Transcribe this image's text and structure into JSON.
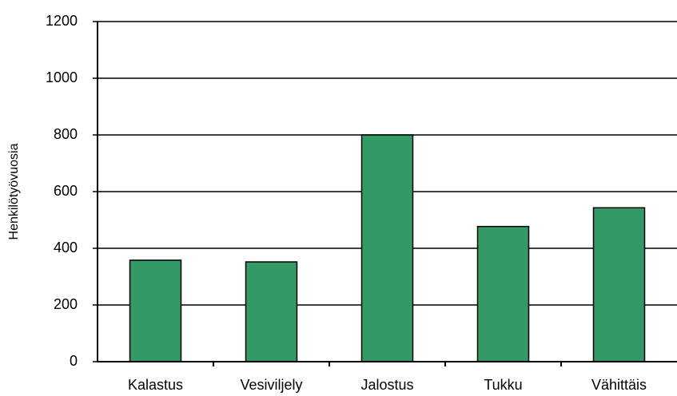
{
  "chart_data": {
    "type": "bar",
    "y_label": "Henkilötyövuosia",
    "categories": [
      "Kalastus",
      "Vesiviljely",
      "Jalostus",
      "Tukku",
      "Vähittäis"
    ],
    "values": [
      358,
      352,
      800,
      477,
      543
    ],
    "color": "#339966",
    "ylim": [
      0,
      1200
    ],
    "yticks": [
      0,
      200,
      400,
      600,
      800,
      1000,
      1200
    ],
    "grid": true
  }
}
